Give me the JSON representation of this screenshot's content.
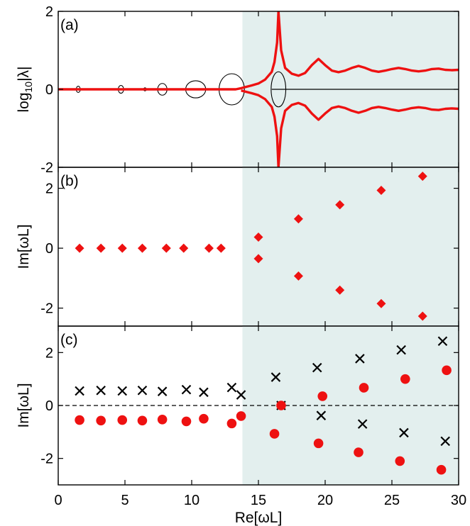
{
  "figure": {
    "xlabel": "Re[ωL]",
    "x_ticks": [
      0,
      5,
      10,
      15,
      20,
      25,
      30
    ],
    "xlim": [
      0,
      30
    ],
    "shade_start_x": 13.8,
    "shade_color": "#e3efee",
    "accent_color": "#ee1111"
  },
  "chart_data": [
    {
      "type": "line",
      "panel_tag": "(a)",
      "ylabel_main": "log",
      "ylabel_sub": "10",
      "ylabel_rest": "|λ|",
      "ylim": [
        -2,
        2
      ],
      "y_ticks": [
        -2,
        0,
        2
      ],
      "series": [
        {
          "color": "#ee1111",
          "x": [
            0,
            13.3,
            13.7,
            14.5,
            15.0,
            15.5,
            16.0,
            16.2,
            16.4,
            16.5
          ],
          "y": [
            0,
            0,
            0.03,
            0.1,
            0.15,
            0.25,
            0.45,
            0.7,
            1.2,
            2.0
          ]
        },
        {
          "color": "#ee1111",
          "x": [
            16.5,
            16.7,
            17.0,
            17.5,
            18.0,
            18.5,
            19.0,
            19.5,
            20.0,
            20.5,
            21.0,
            21.5,
            22.0,
            22.5,
            23.0,
            23.5,
            24.0,
            24.5,
            25.0,
            25.5,
            26.0,
            26.5,
            27.0,
            27.5,
            28.0,
            28.5,
            29.0,
            29.5,
            30.0
          ],
          "y": [
            2.0,
            1.0,
            0.55,
            0.4,
            0.35,
            0.42,
            0.62,
            0.78,
            0.62,
            0.48,
            0.44,
            0.48,
            0.55,
            0.6,
            0.55,
            0.48,
            0.45,
            0.48,
            0.52,
            0.55,
            0.52,
            0.48,
            0.46,
            0.48,
            0.52,
            0.53,
            0.5,
            0.49,
            0.5
          ]
        },
        {
          "color": "#ee1111",
          "x": [
            13.7,
            14.5,
            15.0,
            15.5,
            16.0,
            16.2,
            16.4,
            16.5
          ],
          "y": [
            -0.03,
            -0.1,
            -0.15,
            -0.25,
            -0.45,
            -0.7,
            -1.2,
            -2.0
          ]
        },
        {
          "color": "#ee1111",
          "x": [
            16.5,
            16.7,
            17.0,
            17.5,
            18.0,
            18.5,
            19.0,
            19.5,
            20.0,
            20.5,
            21.0,
            21.5,
            22.0,
            22.5,
            23.0,
            23.5,
            24.0,
            24.5,
            25.0,
            25.5,
            26.0,
            26.5,
            27.0,
            27.5,
            28.0,
            28.5,
            29.0,
            29.5,
            30.0
          ],
          "y": [
            -2.0,
            -1.0,
            -0.55,
            -0.4,
            -0.35,
            -0.42,
            -0.62,
            -0.78,
            -0.62,
            -0.48,
            -0.44,
            -0.48,
            -0.55,
            -0.6,
            -0.55,
            -0.48,
            -0.45,
            -0.48,
            -0.52,
            -0.55,
            -0.52,
            -0.48,
            -0.46,
            -0.48,
            -0.52,
            -0.53,
            -0.5,
            -0.49,
            -0.5
          ]
        },
        {
          "color": "#000000",
          "x": [
            16.0,
            30.0
          ],
          "y": [
            0,
            0
          ]
        }
      ],
      "loops": [
        {
          "cx": 1.5,
          "rx": 0.15,
          "ry": 0.08
        },
        {
          "cx": 4.7,
          "rx": 0.2,
          "ry": 0.1
        },
        {
          "cx": 6.5,
          "rx": 0.1,
          "ry": 0.04
        },
        {
          "cx": 7.8,
          "rx": 0.35,
          "ry": 0.15
        },
        {
          "cx": 10.3,
          "rx": 0.75,
          "ry": 0.22
        },
        {
          "cx": 13.0,
          "rx": 0.95,
          "ry": 0.4
        },
        {
          "cx": 16.5,
          "rx": 0.55,
          "ry": 0.45
        }
      ]
    },
    {
      "type": "scatter",
      "panel_tag": "(b)",
      "ylabel": "Im[ωL]",
      "ylim": [
        -2.6,
        2.7
      ],
      "y_ticks": [
        -2,
        0,
        2
      ],
      "series": [
        {
          "marker": "diamond",
          "color": "#ee1111",
          "x": [
            1.6,
            3.2,
            4.8,
            6.3,
            8.1,
            9.4,
            11.3,
            12.2,
            15.0,
            15.0,
            18.0,
            18.0,
            21.1,
            21.1,
            24.2,
            24.2,
            27.3,
            27.3
          ],
          "y": [
            0,
            0,
            0,
            0,
            0,
            0,
            0,
            0,
            0.37,
            -0.35,
            0.98,
            -0.93,
            1.45,
            -1.4,
            1.93,
            -1.85,
            2.4,
            -2.27
          ]
        }
      ]
    },
    {
      "type": "scatter",
      "panel_tag": "(c)",
      "ylabel": "Im[ωL]",
      "ylim": [
        -3,
        3
      ],
      "y_ticks": [
        -2,
        0,
        2
      ],
      "zero_line": "dashed",
      "series": [
        {
          "marker": "x",
          "color": "#000000",
          "x": [
            1.6,
            3.2,
            4.8,
            6.3,
            7.8,
            9.6,
            10.9,
            13.0,
            13.7,
            16.3,
            16.7,
            19.4,
            19.7,
            22.6,
            22.8,
            25.7,
            25.9,
            28.8,
            29.0
          ],
          "y": [
            0.55,
            0.57,
            0.55,
            0.57,
            0.53,
            0.6,
            0.5,
            0.68,
            0.4,
            1.07,
            0.0,
            1.43,
            -0.38,
            1.77,
            -0.7,
            2.1,
            -1.03,
            2.43,
            -1.35
          ]
        },
        {
          "marker": "circle",
          "color": "#ee1111",
          "x": [
            1.6,
            3.2,
            4.8,
            6.3,
            7.8,
            9.6,
            10.9,
            13.0,
            13.7,
            16.2,
            16.7,
            19.5,
            19.8,
            22.5,
            22.9,
            25.6,
            26.0,
            28.7,
            29.1
          ],
          "y": [
            -0.55,
            -0.57,
            -0.55,
            -0.57,
            -0.53,
            -0.6,
            -0.5,
            -0.68,
            -0.4,
            -1.07,
            0.0,
            -1.43,
            0.35,
            -1.77,
            0.67,
            -2.1,
            1.0,
            -2.43,
            1.33
          ]
        }
      ]
    }
  ]
}
